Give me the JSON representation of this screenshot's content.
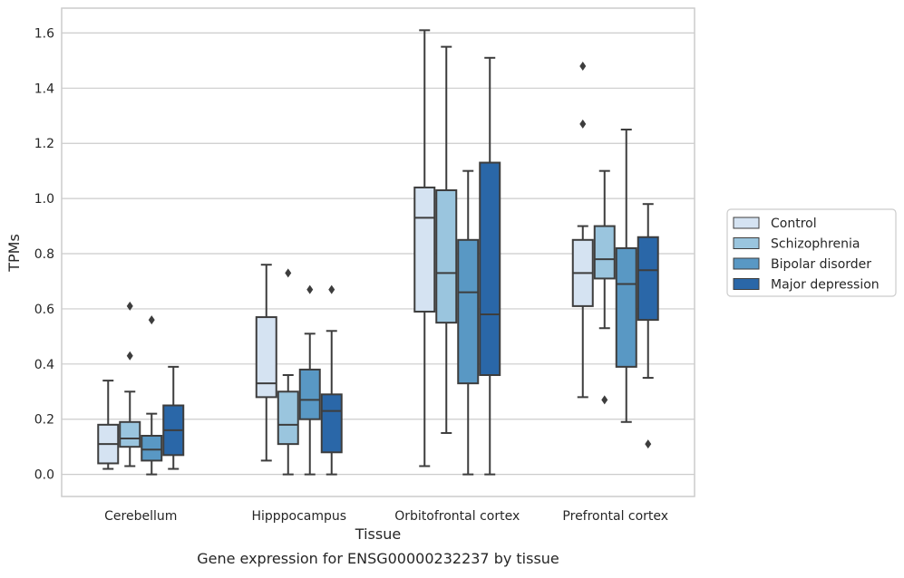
{
  "chart_data": {
    "type": "box",
    "xlabel": "Tissue",
    "ylabel": "TPMs",
    "caption": "Gene expression for ENSG00000232237 by tissue",
    "ylim": [
      -0.08,
      1.69
    ],
    "yticks": [
      "0.0",
      "0.2",
      "0.4",
      "0.6",
      "0.8",
      "1.0",
      "1.2",
      "1.4",
      "1.6"
    ],
    "grid": true,
    "legend_position": "right",
    "categories": [
      "Cerebellum",
      "Hipppocampus",
      "Orbitofrontal cortex",
      "Prefrontal cortex"
    ],
    "series": [
      {
        "name": "Control",
        "color": "#d5e3f2",
        "boxes": [
          {
            "whisker_low": 0.02,
            "q1": 0.04,
            "median": 0.11,
            "q3": 0.18,
            "whisker_high": 0.34,
            "outliers": []
          },
          {
            "whisker_low": 0.05,
            "q1": 0.28,
            "median": 0.33,
            "q3": 0.57,
            "whisker_high": 0.76,
            "outliers": []
          },
          {
            "whisker_low": 0.03,
            "q1": 0.59,
            "median": 0.93,
            "q3": 1.04,
            "whisker_high": 1.61,
            "outliers": []
          },
          {
            "whisker_low": 0.28,
            "q1": 0.61,
            "median": 0.73,
            "q3": 0.85,
            "whisker_high": 0.9,
            "outliers": [
              1.27,
              1.48
            ]
          }
        ]
      },
      {
        "name": "Schizophrenia",
        "color": "#9ac5de",
        "boxes": [
          {
            "whisker_low": 0.03,
            "q1": 0.1,
            "median": 0.13,
            "q3": 0.19,
            "whisker_high": 0.3,
            "outliers": [
              0.43,
              0.61
            ]
          },
          {
            "whisker_low": 0.0,
            "q1": 0.11,
            "median": 0.18,
            "q3": 0.3,
            "whisker_high": 0.36,
            "outliers": [
              0.73
            ]
          },
          {
            "whisker_low": 0.15,
            "q1": 0.55,
            "median": 0.73,
            "q3": 1.03,
            "whisker_high": 1.55,
            "outliers": []
          },
          {
            "whisker_low": 0.53,
            "q1": 0.71,
            "median": 0.78,
            "q3": 0.9,
            "whisker_high": 1.1,
            "outliers": [
              0.27
            ]
          }
        ]
      },
      {
        "name": "Bipolar disorder",
        "color": "#5998c4",
        "boxes": [
          {
            "whisker_low": 0.0,
            "q1": 0.05,
            "median": 0.09,
            "q3": 0.14,
            "whisker_high": 0.22,
            "outliers": [
              0.56
            ]
          },
          {
            "whisker_low": 0.0,
            "q1": 0.2,
            "median": 0.27,
            "q3": 0.38,
            "whisker_high": 0.51,
            "outliers": [
              0.67
            ]
          },
          {
            "whisker_low": 0.0,
            "q1": 0.33,
            "median": 0.66,
            "q3": 0.85,
            "whisker_high": 1.1,
            "outliers": []
          },
          {
            "whisker_low": 0.19,
            "q1": 0.39,
            "median": 0.69,
            "q3": 0.82,
            "whisker_high": 1.25,
            "outliers": []
          }
        ]
      },
      {
        "name": "Major depression",
        "color": "#2a67a8",
        "boxes": [
          {
            "whisker_low": 0.02,
            "q1": 0.07,
            "median": 0.16,
            "q3": 0.25,
            "whisker_high": 0.39,
            "outliers": []
          },
          {
            "whisker_low": 0.0,
            "q1": 0.08,
            "median": 0.23,
            "q3": 0.29,
            "whisker_high": 0.52,
            "outliers": [
              0.67
            ]
          },
          {
            "whisker_low": 0.0,
            "q1": 0.36,
            "median": 0.58,
            "q3": 1.13,
            "whisker_high": 1.51,
            "outliers": []
          },
          {
            "whisker_low": 0.35,
            "q1": 0.56,
            "median": 0.74,
            "q3": 0.86,
            "whisker_high": 0.98,
            "outliers": [
              0.11
            ]
          }
        ]
      }
    ]
  }
}
